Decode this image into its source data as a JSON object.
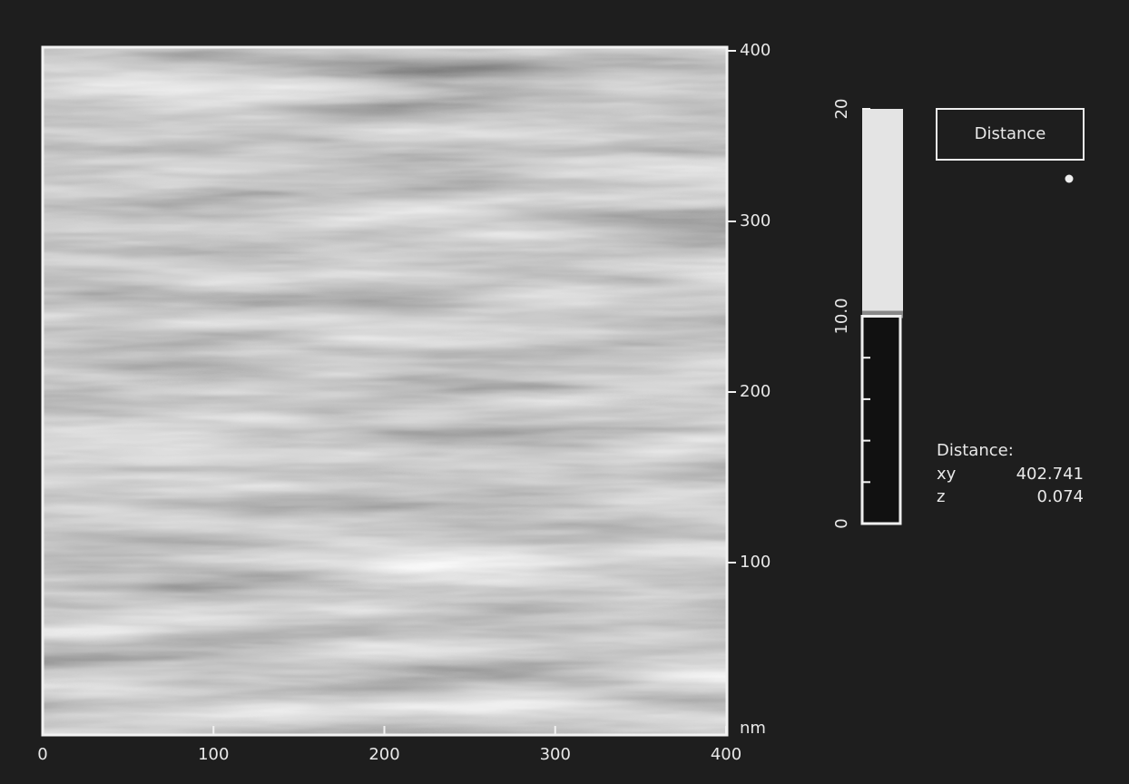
{
  "image": {
    "x_axis": {
      "ticks": [
        0,
        100,
        200,
        300,
        400
      ]
    },
    "y_axis": {
      "ticks": [
        100,
        200,
        300,
        400
      ],
      "unit": "nm"
    }
  },
  "color_scale": {
    "ticks": [
      0,
      {
        "value": 10,
        "label": "10.0"
      },
      20
    ]
  },
  "button": {
    "label": "Distance"
  },
  "readout": {
    "title": "Distance:",
    "rows": [
      {
        "label": "xy",
        "value": "402.741"
      },
      {
        "label": "z",
        "value": "0.074"
      }
    ]
  }
}
